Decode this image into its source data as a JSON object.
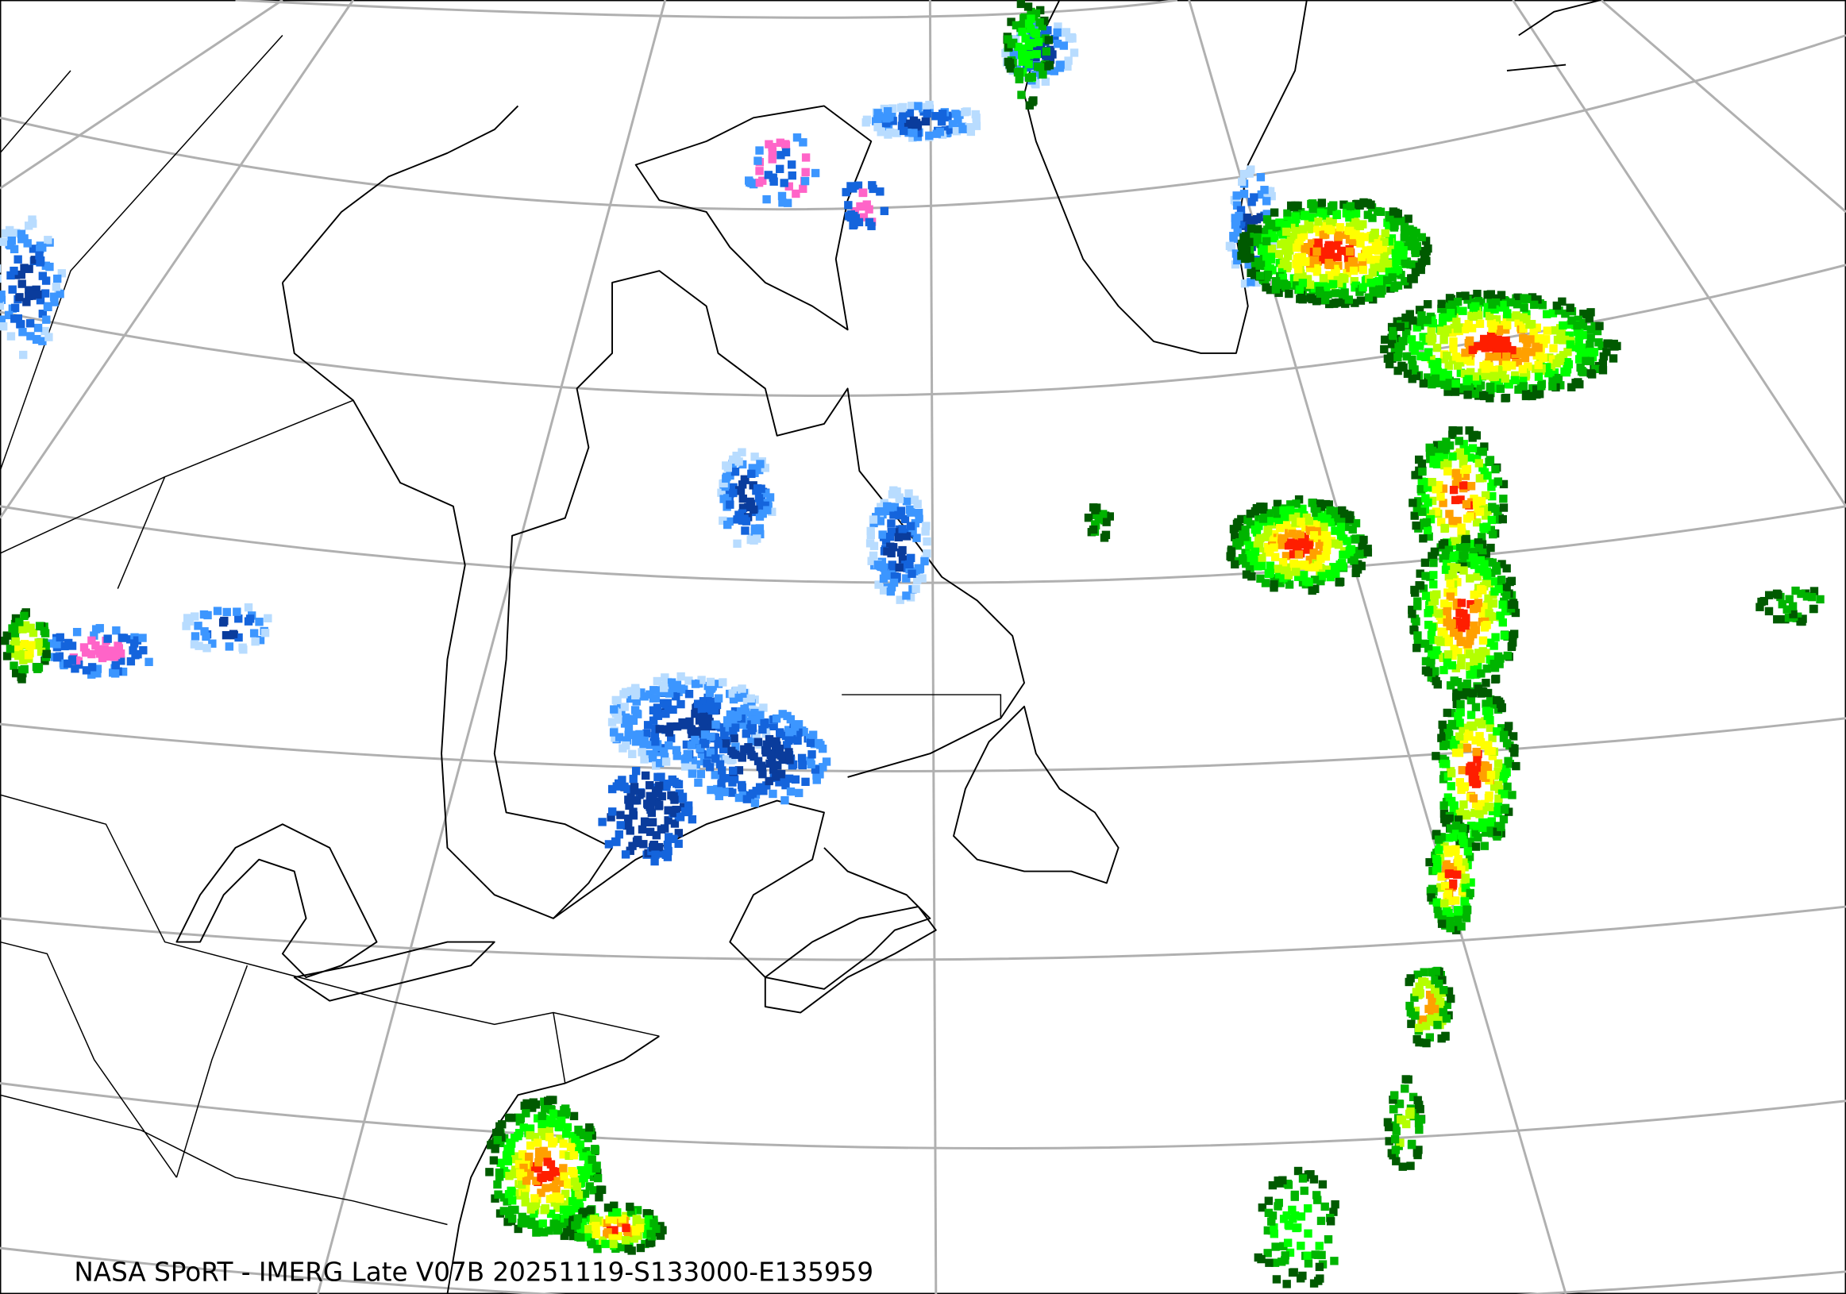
{
  "caption": "NASA SPoRT - IMERG Late V07B 20251119-S133000-E135959",
  "map": {
    "background": "#ffffff",
    "graticule_color": "#b0b0b0",
    "coastline_color": "#000000",
    "precip_colors": {
      "light_blue": "#b8dcff",
      "blue": "#3c96ff",
      "mid_blue": "#1464dc",
      "dark_blue": "#0a3c9c",
      "pink": "#ff64c8",
      "dark_green": "#005a00",
      "green": "#00b400",
      "bright_green": "#00ff00",
      "yellow_green": "#b4ff00",
      "yellow": "#ffff00",
      "orange": "#ffa000",
      "red": "#ff1e00"
    }
  }
}
